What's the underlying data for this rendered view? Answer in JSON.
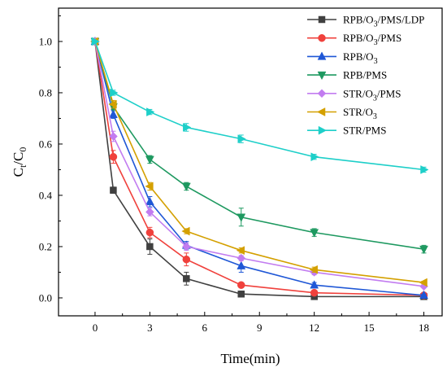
{
  "chart_data": {
    "type": "line",
    "xlabel": "Time(min)",
    "ylabel": "C",
    "ylabel_sub_1": "t",
    "ylabel_slash": "/C",
    "ylabel_sub_2": "0",
    "xlim": [
      -2,
      19
    ],
    "ylim": [
      -0.07,
      1.13
    ],
    "xticks": [
      0,
      3,
      6,
      9,
      12,
      15,
      18
    ],
    "yticks": [
      0.0,
      0.2,
      0.4,
      0.6,
      0.8,
      1.0
    ],
    "ytick_labels": [
      "0.0",
      "0.2",
      "0.4",
      "0.6",
      "0.8",
      "1.0"
    ],
    "legend_position": "top-right",
    "x": [
      0,
      1,
      3,
      5,
      8,
      12,
      18
    ],
    "series": [
      {
        "name_parts": [
          "RPB/O",
          "3",
          "/PMS/LDP"
        ],
        "color": "#404040",
        "marker": "square",
        "values": [
          1.0,
          0.42,
          0.2,
          0.075,
          0.015,
          0.005,
          0.005
        ],
        "errors": [
          0,
          0.012,
          0.03,
          0.025,
          0.01,
          0.005,
          0.005
        ]
      },
      {
        "name_parts": [
          "RPB/O",
          "3",
          "/PMS"
        ],
        "color": "#f0413c",
        "marker": "circle",
        "values": [
          1.0,
          0.55,
          0.255,
          0.15,
          0.05,
          0.02,
          0.01
        ],
        "errors": [
          0,
          0.025,
          0.02,
          0.025,
          0.01,
          0.005,
          0.005
        ]
      },
      {
        "name_parts": [
          "RPB/O",
          "3",
          ""
        ],
        "color": "#1f57d6",
        "marker": "triangle-up",
        "values": [
          1.0,
          0.715,
          0.375,
          0.205,
          0.125,
          0.05,
          0.01
        ],
        "errors": [
          0,
          0.015,
          0.02,
          0.015,
          0.025,
          0.01,
          0.005
        ]
      },
      {
        "name_parts": [
          "RPB/PMS",
          "",
          ""
        ],
        "color": "#1e9960",
        "marker": "triangle-down",
        "values": [
          1.0,
          0.745,
          0.54,
          0.435,
          0.315,
          0.255,
          0.19
        ],
        "errors": [
          0,
          0.01,
          0.015,
          0.015,
          0.035,
          0.015,
          0.015
        ]
      },
      {
        "name_parts": [
          "STR/O",
          "3",
          "/PMS"
        ],
        "color": "#c27cf0",
        "marker": "diamond",
        "values": [
          1.0,
          0.63,
          0.335,
          0.2,
          0.155,
          0.1,
          0.045
        ],
        "errors": [
          0,
          0.02,
          0.015,
          0.015,
          0.01,
          0.01,
          0.005
        ]
      },
      {
        "name_parts": [
          "STR/O",
          "3",
          ""
        ],
        "color": "#d4a000",
        "marker": "triangle-left",
        "values": [
          1.0,
          0.755,
          0.435,
          0.26,
          0.185,
          0.11,
          0.06
        ],
        "errors": [
          0,
          0.015,
          0.015,
          0.01,
          0.01,
          0.01,
          0.005
        ]
      },
      {
        "name_parts": [
          "STR/PMS",
          "",
          ""
        ],
        "color": "#1ecfc9",
        "marker": "triangle-right",
        "values": [
          1.0,
          0.8,
          0.725,
          0.665,
          0.62,
          0.55,
          0.5
        ],
        "errors": [
          0,
          0.01,
          0.01,
          0.015,
          0.015,
          0.01,
          0.01
        ]
      }
    ]
  }
}
